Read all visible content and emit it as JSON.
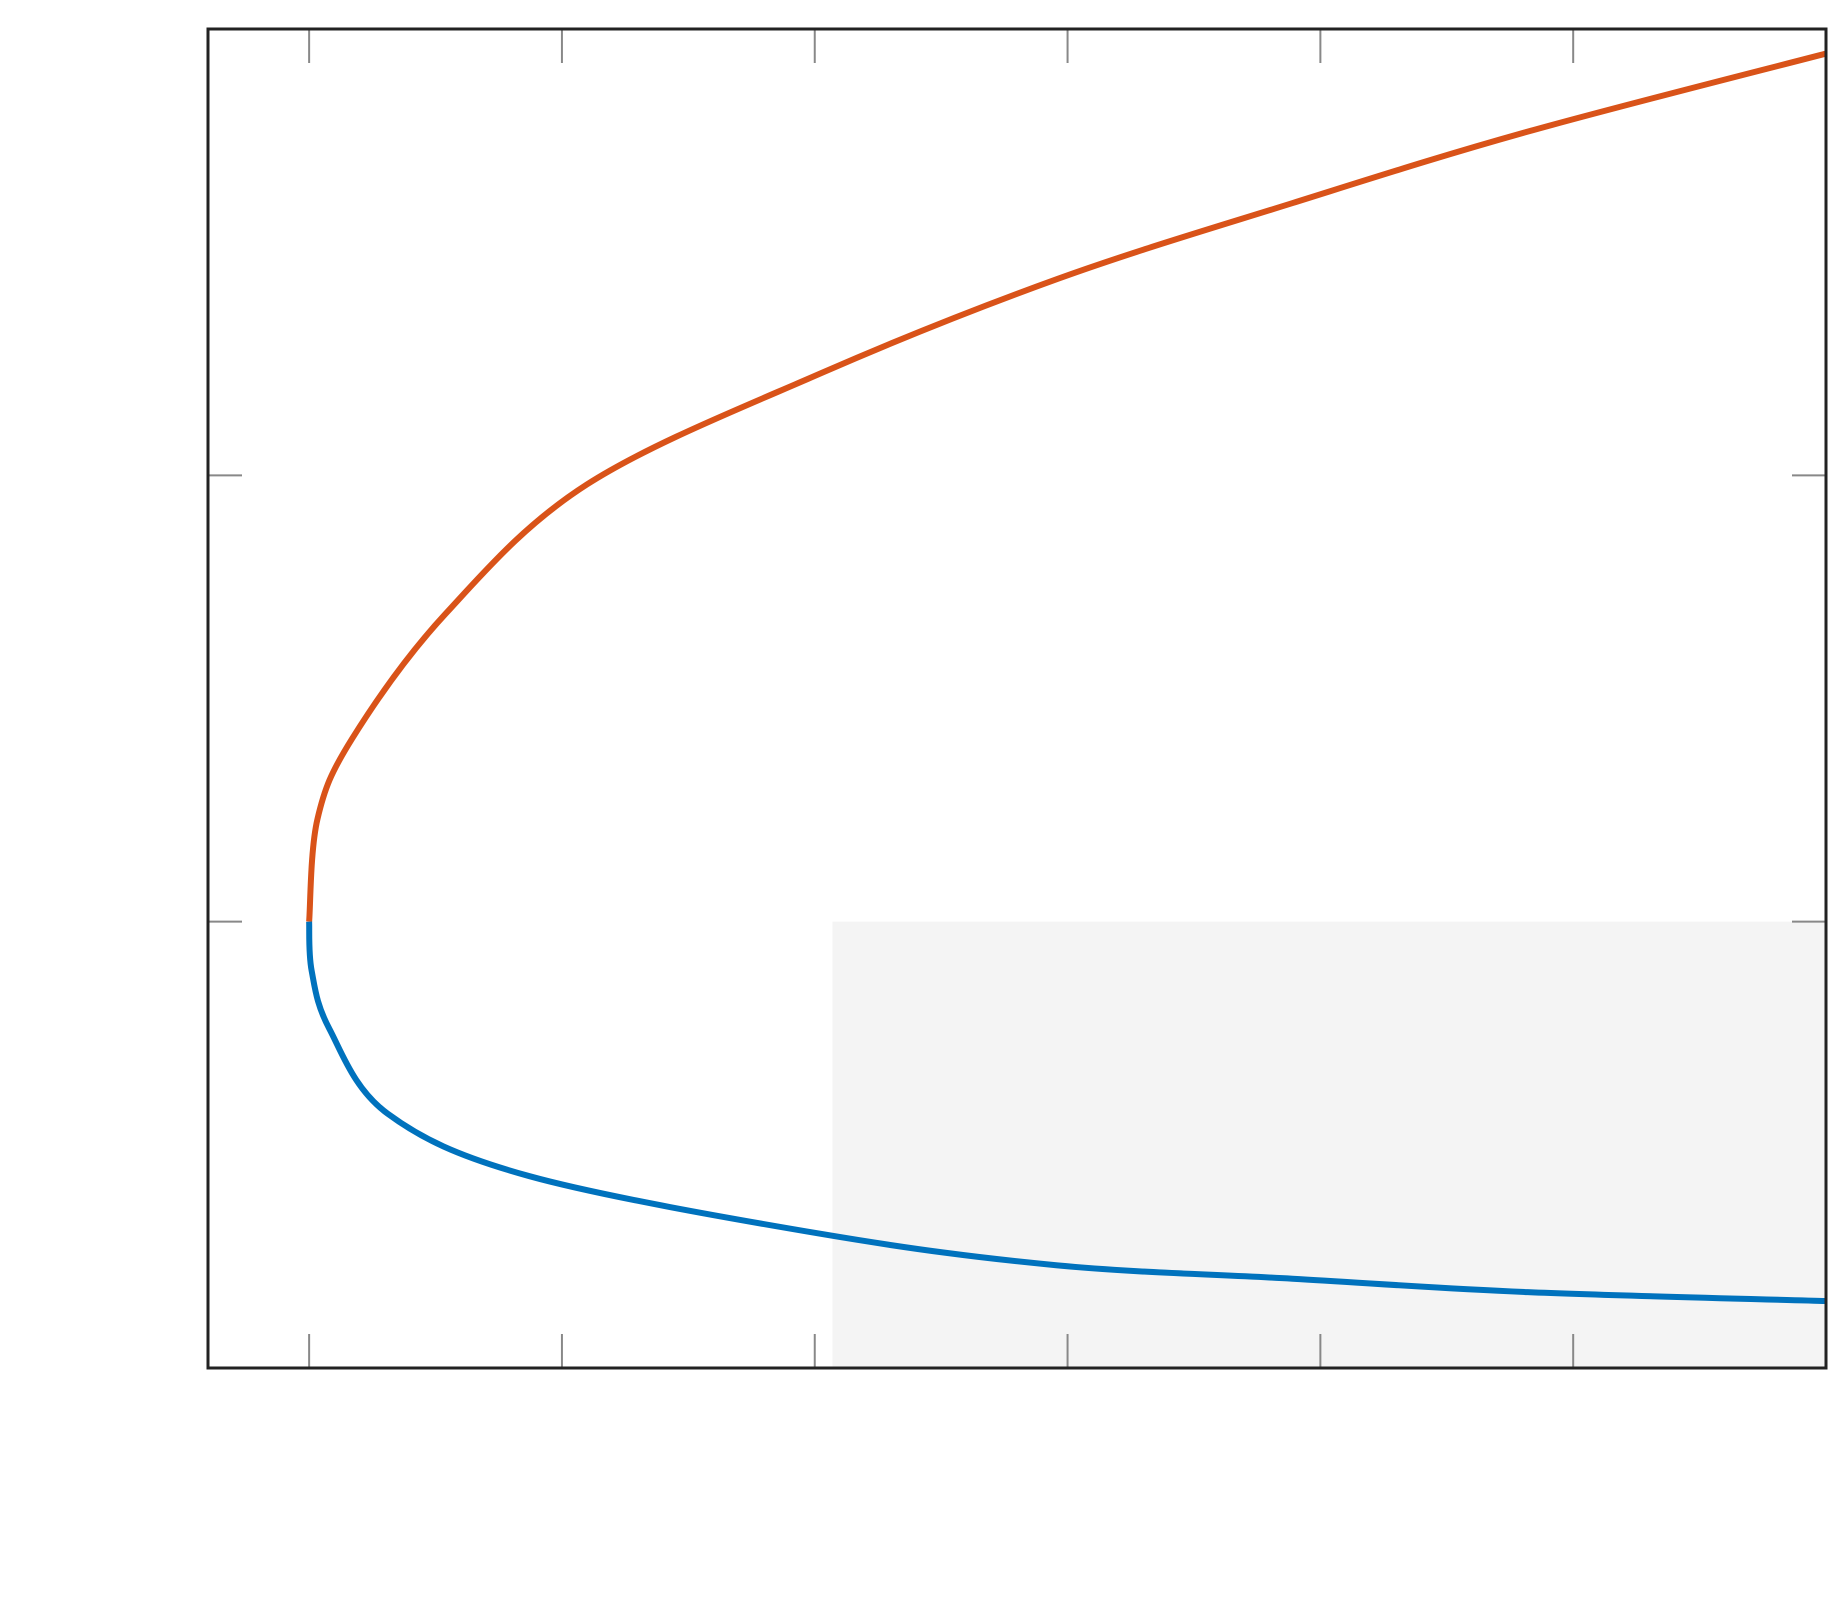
{
  "chart_data": {
    "type": "line",
    "xlim": [
      -0.4,
      6
    ],
    "ylim": [
      -1,
      2
    ],
    "xticks": [
      0,
      1,
      2,
      3,
      4,
      5
    ],
    "yticks": [
      0,
      1
    ],
    "shaded_region": {
      "x": [
        2.07,
        6
      ],
      "y": [
        -1,
        0
      ],
      "color": "#f4f4f4"
    },
    "series": [
      {
        "color": "#d95319",
        "x": [
          0,
          0.033,
          0.17,
          0.54,
          1.1,
          2.03,
          2.96,
          3.89,
          4.82,
          6
        ],
        "values": [
          0,
          0.23,
          0.41,
          0.69,
          0.98,
          1.23,
          1.44,
          1.61,
          1.77,
          1.945
        ]
      },
      {
        "color": "#0072bd",
        "x": [
          0,
          0.01,
          0.08,
          0.31,
          0.87,
          2.03,
          2.96,
          3.89,
          4.82,
          6
        ],
        "values": [
          0,
          -0.11,
          -0.24,
          -0.43,
          -0.57,
          -0.7,
          -0.77,
          -0.8,
          -0.83,
          -0.85
        ]
      }
    ]
  }
}
